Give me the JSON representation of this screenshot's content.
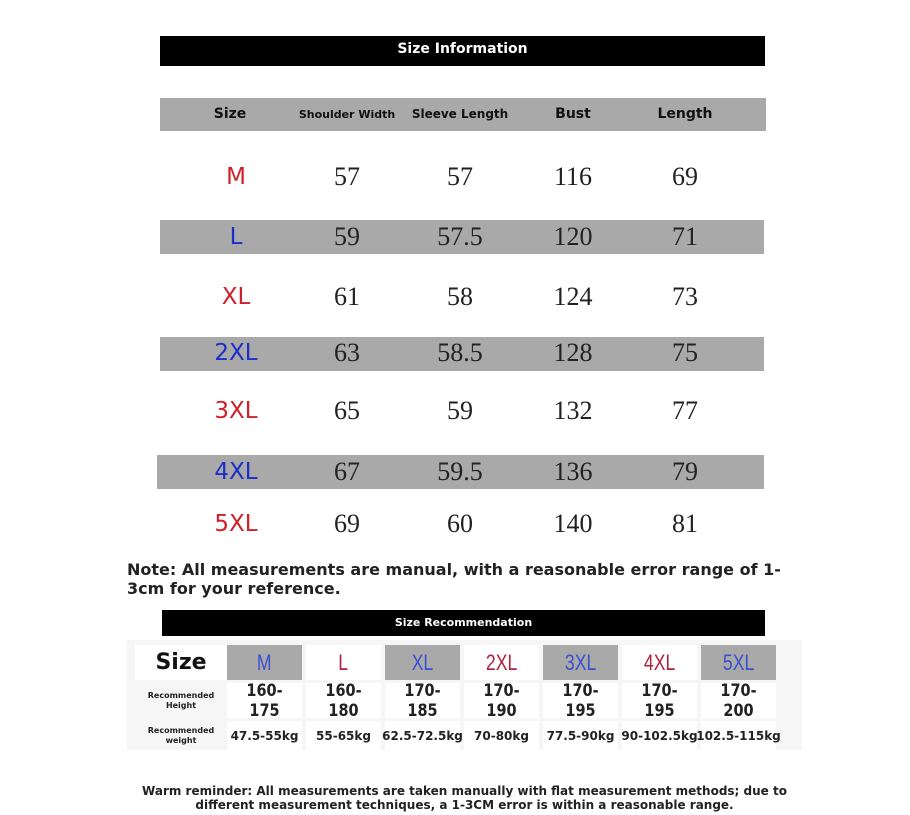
{
  "size_info": {
    "title": "Size Information",
    "headers": [
      "Size",
      "Shoulder Width",
      "Sleeve Length",
      "Bust",
      "Length"
    ],
    "rows": [
      {
        "size": "M",
        "values": [
          "57",
          "57",
          "116",
          "69"
        ],
        "color": "#d0202a"
      },
      {
        "size": "L",
        "values": [
          "59",
          "57.5",
          "120",
          "71"
        ],
        "color": "#1a2fc8"
      },
      {
        "size": "XL",
        "values": [
          "61",
          "58",
          "124",
          "73"
        ],
        "color": "#d0202a"
      },
      {
        "size": "2XL",
        "values": [
          "63",
          "58.5",
          "128",
          "75"
        ],
        "color": "#1a2fc8"
      },
      {
        "size": "3XL",
        "values": [
          "65",
          "59",
          "132",
          "77"
        ],
        "color": "#d0202a"
      },
      {
        "size": "4XL",
        "values": [
          "67",
          "59.5",
          "136",
          "79"
        ],
        "color": "#1a2fc8"
      },
      {
        "size": "5XL",
        "values": [
          "69",
          "60",
          "140",
          "81"
        ],
        "color": "#d0202a"
      }
    ]
  },
  "note": "Note: All measurements are manual, with a reasonable error range of 1-3cm for your reference.",
  "size_recommendation": {
    "title": "Size Recommendation",
    "size_label": "Size",
    "height_label": "Recommended Height",
    "weight_label": "Recommended weight",
    "columns": [
      {
        "size": "M",
        "height": "160-175",
        "weight": "47.5-55kg",
        "color": "#3a4fd0"
      },
      {
        "size": "L",
        "height": "160-180",
        "weight": "55-65kg",
        "color": "#b02040"
      },
      {
        "size": "XL",
        "height": "170-185",
        "weight": "62.5-72.5kg",
        "color": "#3a4fd0"
      },
      {
        "size": "2XL",
        "height": "170-190",
        "weight": "70-80kg",
        "color": "#b02040"
      },
      {
        "size": "3XL",
        "height": "170-195",
        "weight": "77.5-90kg",
        "color": "#3a4fd0"
      },
      {
        "size": "4XL",
        "height": "170-195",
        "weight": "90-102.5kg",
        "color": "#b02040"
      },
      {
        "size": "5XL",
        "height": "170-200",
        "weight": "102.5-115kg",
        "color": "#3a4fd0"
      }
    ]
  },
  "warm_reminder": "Warm reminder: All measurements are taken manually with flat measurement methods; due to different measurement techniques, a 1-3CM error is within a reasonable range."
}
